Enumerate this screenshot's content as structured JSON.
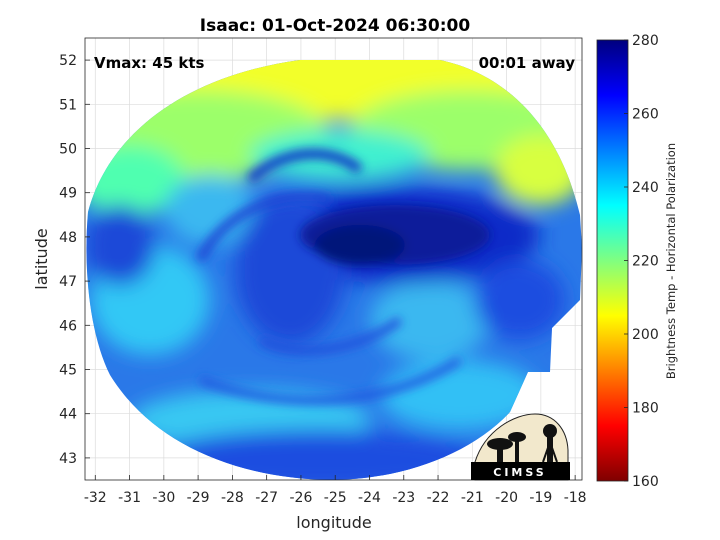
{
  "title": "Isaac: 01-Oct-2024 06:30:00",
  "annotations": {
    "vmax": "Vmax: 45 kts",
    "time_away": "00:01 away"
  },
  "logo": {
    "text": "CIMSS"
  },
  "chart_data": {
    "type": "heatmap",
    "title": "Isaac: 01-Oct-2024 06:30:00",
    "xlabel": "longitude",
    "ylabel": "latitude",
    "xlim": [
      -32.3,
      -17.8
    ],
    "ylim": [
      42.5,
      52.5
    ],
    "x_ticks": [
      -32,
      -31,
      -30,
      -29,
      -28,
      -27,
      -26,
      -25,
      -24,
      -23,
      -22,
      -21,
      -20,
      -19,
      -18
    ],
    "y_ticks": [
      43,
      44,
      45,
      46,
      47,
      48,
      49,
      50,
      51,
      52
    ],
    "x_tick_labels": [
      "-32",
      "-31",
      "-30",
      "-29",
      "-28",
      "-27",
      "-26",
      "-25",
      "-24",
      "-23",
      "-22",
      "-21",
      "-20",
      "-19",
      "-18"
    ],
    "y_tick_labels": [
      "43",
      "44",
      "45",
      "46",
      "47",
      "48",
      "49",
      "50",
      "51",
      "52"
    ],
    "grid": true,
    "colorbar": {
      "label": "Brightness Temp - Horizontal Polarization",
      "range": [
        160,
        280
      ],
      "ticks": [
        160,
        180,
        200,
        220,
        240,
        260,
        280
      ],
      "tick_labels": [
        "160",
        "180",
        "200",
        "220",
        "240",
        "260",
        "280"
      ],
      "colormap": "jet"
    },
    "center_estimate": {
      "lon": -23.8,
      "lat": 47.6,
      "value": 272
    }
  }
}
